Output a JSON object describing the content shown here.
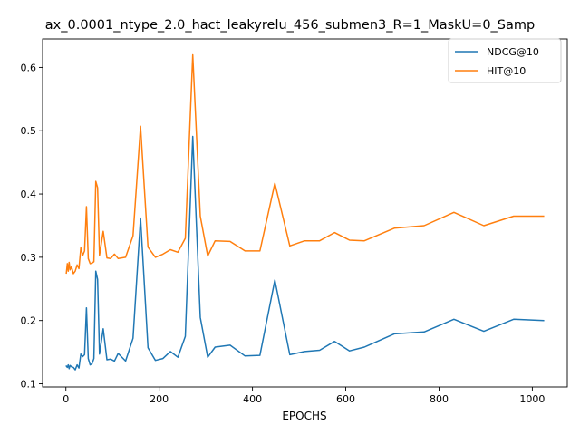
{
  "chart_data": {
    "type": "line",
    "title": "ax_0.0001_ntype_2.0_hact_leakyrelu_456_submen3_R=1_MaskU=0_Samp",
    "xlabel": "EPOCHS",
    "ylabel": "",
    "xlim": [
      -50,
      1075
    ],
    "ylim": [
      0.095,
      0.645
    ],
    "xticks": [
      0,
      200,
      400,
      600,
      800,
      1000
    ],
    "yticks": [
      0.1,
      0.2,
      0.3,
      0.4,
      0.5,
      0.6
    ],
    "xtick_labels": [
      "0",
      "200",
      "400",
      "600",
      "800",
      "1000"
    ],
    "ytick_labels": [
      "0.1",
      "0.2",
      "0.3",
      "0.4",
      "0.5",
      "0.6"
    ],
    "grid": false,
    "legend_position": "top-right",
    "series": [
      {
        "name": "NDCG@10",
        "color": "#1f77b4",
        "x": [
          1,
          3,
          5,
          7,
          9,
          12,
          16,
          20,
          24,
          28,
          32,
          36,
          40,
          44,
          48,
          52,
          56,
          60,
          64,
          68,
          72,
          80,
          88,
          96,
          104,
          112,
          128,
          144,
          160,
          176,
          192,
          208,
          224,
          240,
          256,
          272,
          288,
          304,
          320,
          352,
          384,
          416,
          448,
          480,
          512,
          544,
          576,
          608,
          640,
          704,
          768,
          832,
          896,
          960,
          1024
        ],
        "values": [
          0.128,
          0.126,
          0.13,
          0.124,
          0.129,
          0.127,
          0.126,
          0.122,
          0.13,
          0.125,
          0.147,
          0.143,
          0.146,
          0.22,
          0.14,
          0.13,
          0.132,
          0.14,
          0.278,
          0.265,
          0.147,
          0.187,
          0.138,
          0.139,
          0.136,
          0.148,
          0.136,
          0.172,
          0.362,
          0.157,
          0.137,
          0.14,
          0.151,
          0.142,
          0.175,
          0.491,
          0.205,
          0.142,
          0.158,
          0.161,
          0.144,
          0.145,
          0.264,
          0.146,
          0.151,
          0.153,
          0.167,
          0.152,
          0.158,
          0.179,
          0.182,
          0.202,
          0.183,
          0.202,
          0.2
        ]
      },
      {
        "name": "HIT@10",
        "color": "#ff7f0e",
        "x": [
          1,
          3,
          5,
          7,
          9,
          12,
          16,
          20,
          24,
          28,
          32,
          36,
          40,
          44,
          48,
          52,
          56,
          60,
          64,
          68,
          72,
          80,
          88,
          96,
          104,
          112,
          128,
          144,
          160,
          176,
          192,
          208,
          224,
          240,
          256,
          272,
          288,
          304,
          320,
          352,
          384,
          416,
          448,
          480,
          512,
          544,
          576,
          608,
          640,
          704,
          768,
          832,
          896,
          960,
          1024
        ],
        "values": [
          0.275,
          0.29,
          0.278,
          0.292,
          0.28,
          0.285,
          0.274,
          0.278,
          0.288,
          0.282,
          0.315,
          0.303,
          0.31,
          0.38,
          0.298,
          0.29,
          0.291,
          0.293,
          0.42,
          0.41,
          0.303,
          0.341,
          0.299,
          0.298,
          0.305,
          0.298,
          0.3,
          0.334,
          0.507,
          0.316,
          0.3,
          0.305,
          0.312,
          0.308,
          0.33,
          0.62,
          0.365,
          0.302,
          0.326,
          0.325,
          0.31,
          0.31,
          0.417,
          0.318,
          0.326,
          0.326,
          0.339,
          0.327,
          0.326,
          0.346,
          0.35,
          0.371,
          0.35,
          0.365,
          0.365
        ]
      }
    ]
  }
}
